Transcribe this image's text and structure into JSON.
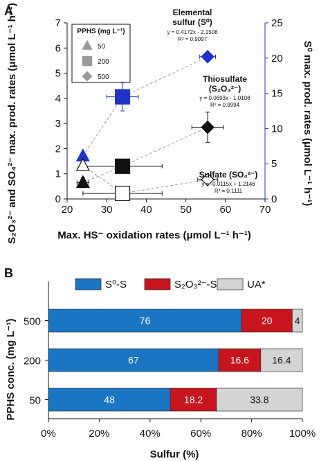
{
  "panel_a_label": "A",
  "panel_b_label": "B",
  "chart_data": [
    {
      "type": "scatter",
      "xlabel": "Max. HS⁻ oxidation rates (μmol L⁻¹ h⁻¹)",
      "ylabel_left": "S₂O₃²⁻ and SO₄²⁻ max. prod. rates (μmol L⁻¹ h⁻¹)",
      "ylabel_right": "S⁰ max. prod. rates (μmol L⁻¹ h⁻¹)",
      "xlim": [
        20,
        70
      ],
      "ylim_left": [
        0,
        7
      ],
      "ylim_right": [
        0,
        25
      ],
      "x_ticks": [
        "20",
        "30",
        "40",
        "50",
        "60",
        "70"
      ],
      "y_left_ticks": [
        "0",
        "1",
        "2",
        "3",
        "4",
        "5",
        "6",
        "7"
      ],
      "y_right_ticks": [
        "0",
        "5",
        "10",
        "15",
        "20",
        "25"
      ],
      "legend": {
        "title": "PPHS (mg L⁻¹)",
        "entries": [
          {
            "label": "50",
            "shape": "triangle"
          },
          {
            "label": "200",
            "shape": "square"
          },
          {
            "label": "500",
            "shape": "diamond"
          }
        ]
      },
      "series": [
        {
          "name": "Elemental sulfur (S⁰)",
          "axis": "right",
          "color": "#1f33c8",
          "equation": "y = 0.4172x - 2.1508",
          "r2": "R² = 0.9097",
          "points": [
            {
              "pphs": "50",
              "shape": "triangle",
              "x": 24,
              "y": 6.1,
              "xerr": 0,
              "yerr": 0
            },
            {
              "pphs": "200",
              "shape": "square",
              "x": 34,
              "y": 14.5,
              "xerr": 4,
              "yerr": 2
            },
            {
              "pphs": "500",
              "shape": "diamond",
              "x": 55.5,
              "y": 20.2,
              "xerr": 2,
              "yerr": 0.5
            }
          ]
        },
        {
          "name": "Thiosulfate (S₂O₃²⁻)",
          "axis": "left",
          "color": "#111111",
          "equation": "y = 0.0693x - 1.0108",
          "r2": "R² = 0.9994",
          "points": [
            {
              "pphs": "50",
              "shape": "triangle",
              "x": 24,
              "y": 0.65,
              "xerr": 1.5,
              "yerr": 0.2
            },
            {
              "pphs": "200",
              "shape": "square",
              "x": 34,
              "y": 1.3,
              "xerr": 10,
              "yerr": 0.1
            },
            {
              "pphs": "500",
              "shape": "diamond",
              "x": 55.5,
              "y": 2.85,
              "xerr": 4,
              "yerr": 0.6
            }
          ]
        },
        {
          "name": "Sulfate (SO₄²⁻)",
          "axis": "left",
          "color": "#ffffff",
          "equation": "y = -0.0115x + 1.2146",
          "r2": "R² = 0.1111",
          "points": [
            {
              "pphs": "50",
              "shape": "triangle",
              "x": 24,
              "y": 1.33,
              "xerr": 0,
              "yerr": 0
            },
            {
              "pphs": "200",
              "shape": "square",
              "x": 34,
              "y": 0.22,
              "xerr": 10,
              "yerr": 0
            },
            {
              "pphs": "500",
              "shape": "diamond",
              "x": 55.5,
              "y": 0.77,
              "xerr": 2.5,
              "yerr": 0
            }
          ]
        }
      ]
    },
    {
      "type": "bar",
      "orientation": "horizontal",
      "stacked": true,
      "xlabel": "Sulfur (%)",
      "ylabel": "PPHS conc. (mg L⁻¹)",
      "xlim": [
        0,
        100
      ],
      "x_ticks": [
        "0%",
        "20%",
        "40%",
        "60%",
        "80%",
        "100%"
      ],
      "categories": [
        "500",
        "200",
        "50"
      ],
      "legend_placement": "top",
      "series": [
        {
          "name": "S⁰-S",
          "color": "#1a76c4",
          "values": [
            76,
            67,
            48
          ],
          "labels": [
            "76",
            "67",
            "48"
          ]
        },
        {
          "name": "S₂O₃²⁻-S",
          "color": "#c8141c",
          "values": [
            20,
            16.6,
            18.2
          ],
          "labels": [
            "20",
            "16.6",
            "18.2"
          ]
        },
        {
          "name": "UA*",
          "color": "#d4d4d4",
          "values": [
            4,
            16.4,
            33.8
          ],
          "labels": [
            "4",
            "16.4",
            "33.8"
          ]
        }
      ]
    }
  ]
}
